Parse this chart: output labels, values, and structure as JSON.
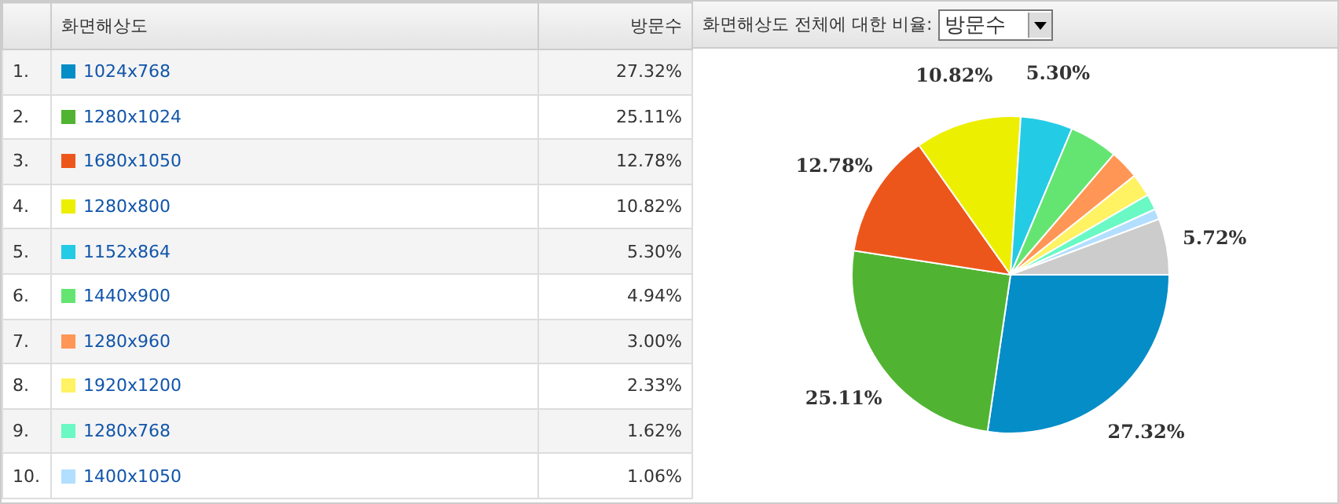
{
  "chart_data": {
    "type": "pie",
    "title": "화면해상도 전체에 대한 비율:",
    "xlabel": "화면해상도",
    "ylabel": "방문수",
    "annotations": [
      "방문수",
      "1.",
      "2.",
      "3.",
      "4.",
      "5.",
      "6.",
      "7.",
      "8.",
      "9.",
      "10."
    ],
    "legend": "left",
    "categories": [
      "1024x768",
      "1280x1024",
      "1680x1050",
      "1280x800",
      "1152x864",
      "1440x900",
      "1280x960",
      "1920x1200",
      "1280x768",
      "1400x1050",
      null
    ],
    "values": [
      27.32,
      25.11,
      12.78,
      10.82,
      5.3,
      4.94,
      3.0,
      2.33,
      1.62,
      1.06,
      5.72
    ],
    "colors": [
      "#058dc7",
      "#50b432",
      "#ed561b",
      "#edef00",
      "#24cbe5",
      "#64e572",
      "#ff9655",
      "#fff263",
      "#6af9c4",
      "#b2deff",
      "#cccccc"
    ],
    "value_labels": [
      "27.32%",
      "25.11%",
      "12.78%",
      "10.82%",
      "5.30%",
      "4.94%",
      "3.00%",
      "2.33%",
      "1.62%",
      "1.06%",
      "5.72%"
    ]
  }
}
